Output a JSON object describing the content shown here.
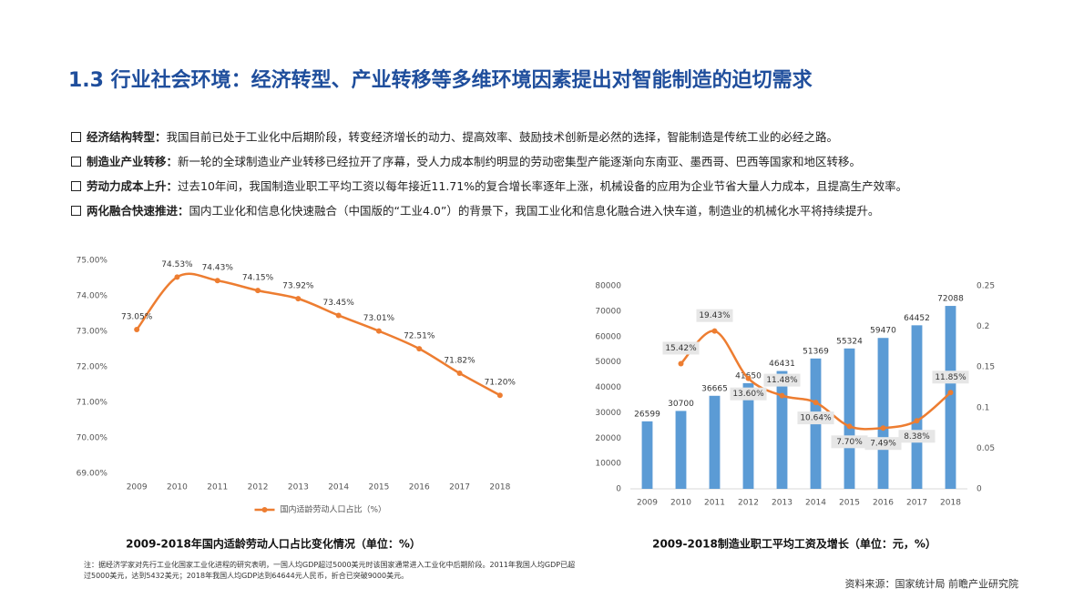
{
  "title": "1.3 行业社会环境：经济转型、产业转移等多维环境因素提出对智能制造的迫切需求",
  "bullets": [
    {
      "label": "经济结构转型：",
      "text": "我国目前已处于工业化中后期阶段，转变经济增长的动力、提高效率、鼓励技术创新是必然的选择，智能制造是传统工业的必经之路。"
    },
    {
      "label": "制造业产业转移：",
      "text": "新一轮的全球制造业产业转移已经拉开了序幕，受人力成本制约明显的劳动密集型产能逐渐向东南亚、墨西哥、巴西等国家和地区转移。"
    },
    {
      "label": "劳动力成本上升：",
      "text": "过去10年间，我国制造业职工平均工资以每年接近11.71%的复合增长率逐年上涨，机械设备的应用为企业节省大量人力成本，且提高生产效率。"
    },
    {
      "label": "两化融合快速推进：",
      "text": "国内工业化和信息化快速融合（中国版的“工业4.0”）的背景下，我国工业化和信息化融合进入快车道，制造业的机械化水平将持续提升。"
    }
  ],
  "chart_data": [
    {
      "type": "line",
      "title": "2009-2018年国内适龄劳动人口占比变化情况（单位：%）",
      "categories": [
        "2009",
        "2010",
        "2011",
        "2012",
        "2013",
        "2014",
        "2015",
        "2016",
        "2017",
        "2018"
      ],
      "series": [
        {
          "name": "国内适龄劳动人口占比（%）",
          "color": "#ed7d31",
          "values": [
            73.05,
            74.53,
            74.43,
            74.15,
            73.92,
            73.45,
            73.01,
            72.51,
            71.82,
            71.2
          ],
          "value_labels": [
            "73.05%",
            "74.53%",
            "74.43%",
            "74.15%",
            "73.92%",
            "73.45%",
            "73.01%",
            "72.51%",
            "71.82%",
            "71.20%"
          ]
        }
      ],
      "ylim": [
        69,
        75
      ],
      "yticks": [
        {
          "value": 69,
          "label": "69.00%"
        },
        {
          "value": 70,
          "label": "70.00%"
        },
        {
          "value": 71,
          "label": "71.00%"
        },
        {
          "value": 72,
          "label": "72.00%"
        },
        {
          "value": 73,
          "label": "73.00%"
        },
        {
          "value": 74,
          "label": "74.00%"
        },
        {
          "value": 75,
          "label": "75.00%"
        }
      ],
      "legend": "bottom"
    },
    {
      "type": "bar",
      "title": "2009-2018制造业职工平均工资及增长（单位：元，%）",
      "categories": [
        "2009",
        "2010",
        "2011",
        "2012",
        "2013",
        "2014",
        "2015",
        "2016",
        "2017",
        "2018"
      ],
      "series": [
        {
          "type": "bar",
          "color": "#5b9bd5",
          "values": [
            26599,
            30700,
            36665,
            41650,
            46431,
            51369,
            55324,
            59470,
            64452,
            72088
          ]
        },
        {
          "type": "line",
          "axis": "y2",
          "color": "#ed7d31",
          "values": [
            null,
            0.1542,
            0.1943,
            0.136,
            0.1148,
            0.1064,
            0.077,
            0.0749,
            0.0838,
            0.1185
          ],
          "value_labels": [
            null,
            "15.42%",
            "19.43%",
            "13.60%",
            "11.48%",
            "10.64%",
            "7.70%",
            "7.49%",
            "8.38%",
            "11.85%"
          ]
        }
      ],
      "ylim": [
        0,
        80000
      ],
      "yticks": [
        0,
        10000,
        20000,
        30000,
        40000,
        50000,
        60000,
        70000,
        80000
      ],
      "y2lim": [
        0,
        0.25
      ],
      "y2ticks": [
        0,
        0.05,
        0.1,
        0.15,
        0.2,
        0.25
      ]
    }
  ],
  "note": "注：据经济学家对先行工业化国家工业化进程的研究表明，一国人均GDP超过5000美元时该国家通常进入工业化中后期阶段。2011年我国人均GDP已超过5000美元，达到5432美元；2018年我国人均GDP达到64644元人民币，折合已突破9000美元。",
  "source": "资料来源：国家统计局 前瞻产业研究院"
}
